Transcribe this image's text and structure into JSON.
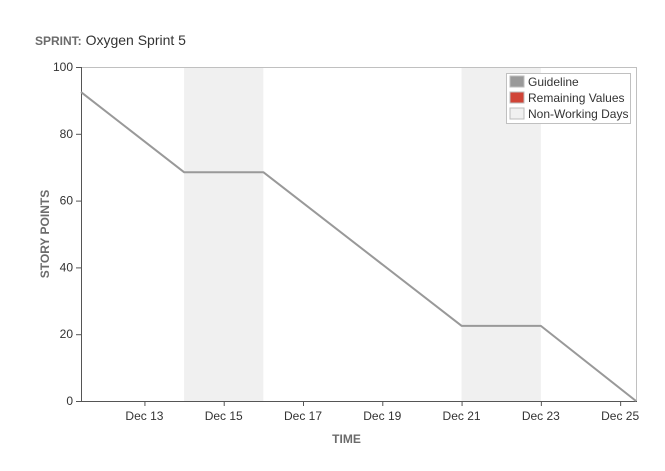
{
  "sprint": {
    "key_label": "SPRINT:",
    "name": "Oxygen Sprint 5"
  },
  "colors": {
    "guideline": "#999999",
    "remaining": "#d04437",
    "non_working": "#f0f0f0",
    "axis": "#333333"
  },
  "chart_data": {
    "type": "line",
    "title": "",
    "xlabel": "TIME",
    "ylabel": "STORY POINTS",
    "x_type": "date",
    "xlim": [
      "Dec 11.4",
      "Dec 25.4"
    ],
    "ylim": [
      0,
      100
    ],
    "y_ticks": [
      0,
      20,
      40,
      60,
      80,
      100
    ],
    "x_ticks": [
      {
        "label": "Dec 13",
        "day": 13
      },
      {
        "label": "Dec 15",
        "day": 15
      },
      {
        "label": "Dec 17",
        "day": 17
      },
      {
        "label": "Dec 19",
        "day": 19
      },
      {
        "label": "Dec 21",
        "day": 21
      },
      {
        "label": "Dec 23",
        "day": 23
      },
      {
        "label": "Dec 25",
        "day": 25
      }
    ],
    "grid": false,
    "legend_position": "top-right",
    "legend": [
      {
        "label": "Guideline",
        "key": "guideline"
      },
      {
        "label": "Remaining Values",
        "key": "remaining"
      },
      {
        "label": "Non-Working Days",
        "key": "non_working"
      }
    ],
    "non_working_days": [
      {
        "from": 14,
        "to": 16
      },
      {
        "from": 21,
        "to": 23
      }
    ],
    "series": [
      {
        "name": "Guideline",
        "points": [
          {
            "day": 11.4,
            "y": 92.5
          },
          {
            "day": 14,
            "y": 68.5
          },
          {
            "day": 16,
            "y": 68.5
          },
          {
            "day": 21,
            "y": 22.5
          },
          {
            "day": 23,
            "y": 22.5
          },
          {
            "day": 25.4,
            "y": 0
          }
        ]
      }
    ]
  }
}
